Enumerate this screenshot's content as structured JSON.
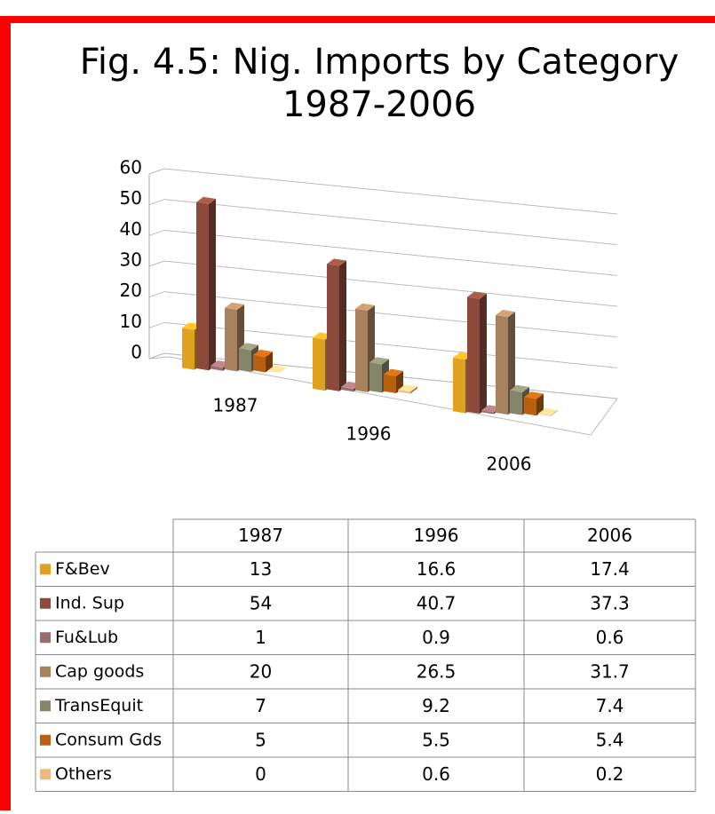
{
  "chart_data": {
    "type": "bar",
    "title": "Fig. 4.5: Nig. Imports by Category",
    "subtitle": "1987-2006",
    "categories": [
      "1987",
      "1996",
      "2006"
    ],
    "series": [
      {
        "name": "F&Bev",
        "color": "#e0a020",
        "values": [
          13,
          16.6,
          17.4
        ]
      },
      {
        "name": "Ind. Sup",
        "color": "#8b4a3c",
        "values": [
          54,
          40.7,
          37.3
        ]
      },
      {
        "name": "Fu&Lub",
        "color": "#9c6b72",
        "values": [
          1,
          0.9,
          0.6
        ]
      },
      {
        "name": "Cap goods",
        "color": "#a8825e",
        "values": [
          20,
          26.5,
          31.7
        ]
      },
      {
        "name": "TransEquit",
        "color": "#85856a",
        "values": [
          7,
          9.2,
          7.4
        ]
      },
      {
        "name": "Consum Gds",
        "color": "#b8600f",
        "values": [
          5,
          5.5,
          5.4
        ]
      },
      {
        "name": "Others",
        "color": "#f0b880",
        "values": [
          0,
          0.6,
          0.2
        ]
      }
    ],
    "ylim": [
      0,
      60
    ],
    "yticks": [
      0,
      10,
      20,
      30,
      40,
      50,
      60
    ],
    "grid": true
  }
}
